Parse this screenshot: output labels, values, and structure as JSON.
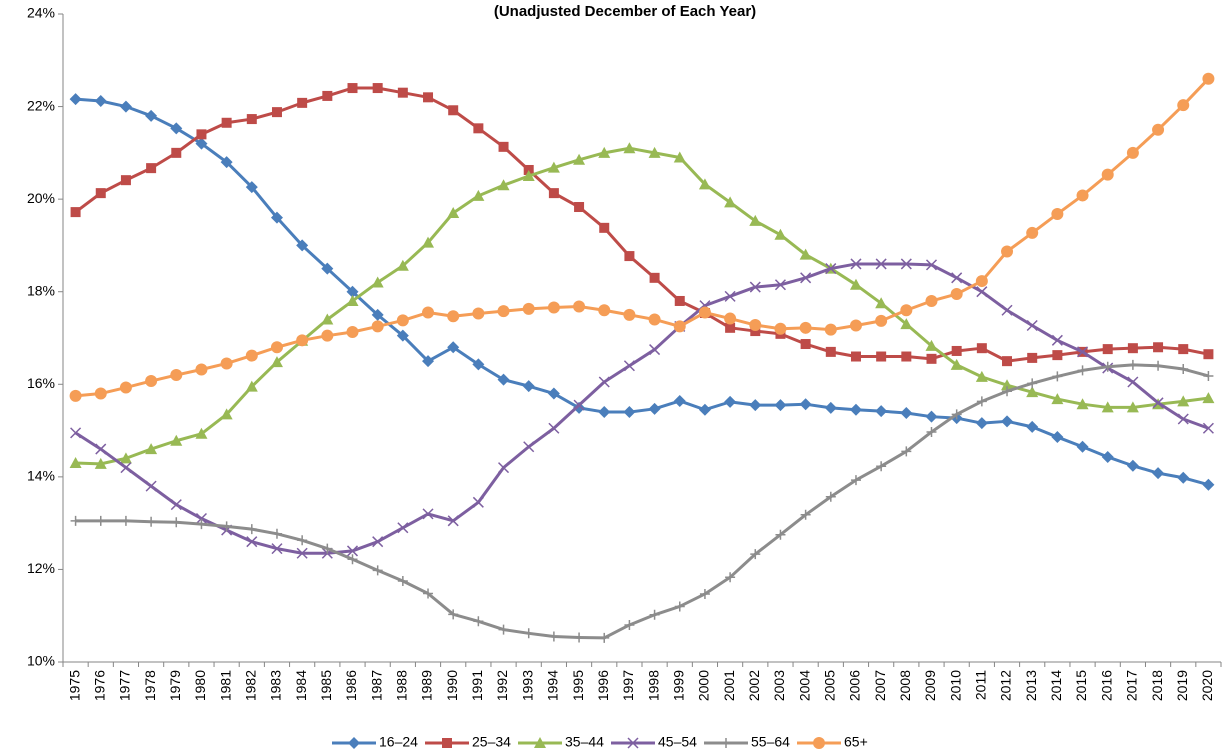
{
  "chart_data": {
    "type": "line",
    "subtitle": "(Unadjusted December of Each Year)",
    "categories": [
      "1975",
      "1976",
      "1977",
      "1978",
      "1979",
      "1980",
      "1981",
      "1982",
      "1983",
      "1984",
      "1985",
      "1986",
      "1987",
      "1988",
      "1989",
      "1990",
      "1991",
      "1992",
      "1993",
      "1994",
      "1995",
      "1996",
      "1997",
      "1998",
      "1999",
      "2000",
      "2001",
      "2002",
      "2003",
      "2004",
      "2005",
      "2006",
      "2007",
      "2008",
      "2009",
      "2010",
      "2011",
      "2012",
      "2013",
      "2014",
      "2015",
      "2016",
      "2017",
      "2018",
      "2019",
      "2020"
    ],
    "ylim": [
      10,
      24
    ],
    "yticks": [
      {
        "value": 10,
        "label": "10%"
      },
      {
        "value": 12,
        "label": "12%"
      },
      {
        "value": 14,
        "label": "14%"
      },
      {
        "value": 16,
        "label": "16%"
      },
      {
        "value": 18,
        "label": "18%"
      },
      {
        "value": 20,
        "label": "20%"
      },
      {
        "value": 22,
        "label": "22%"
      },
      {
        "value": 24,
        "label": "24%"
      }
    ],
    "grid": false,
    "legend": "bottom",
    "series": [
      {
        "name": "16–24",
        "color": "#4a7ebb",
        "marker": "diamond",
        "values": [
          22.16,
          22.12,
          22.0,
          21.8,
          21.53,
          21.2,
          20.8,
          20.26,
          19.6,
          19.0,
          18.5,
          18.0,
          17.5,
          17.05,
          16.5,
          16.8,
          16.43,
          16.1,
          15.96,
          15.8,
          15.49,
          15.4,
          15.4,
          15.47,
          15.64,
          15.45,
          15.62,
          15.55,
          15.55,
          15.57,
          15.49,
          15.45,
          15.42,
          15.38,
          15.3,
          15.27,
          15.16,
          15.2,
          15.08,
          14.86,
          14.65,
          14.43,
          14.24,
          14.08,
          13.98,
          13.83
        ]
      },
      {
        "name": "25–34",
        "color": "#be4b48",
        "marker": "square",
        "values": [
          19.72,
          20.13,
          20.41,
          20.67,
          21.0,
          21.4,
          21.65,
          21.73,
          21.88,
          22.08,
          22.23,
          22.4,
          22.4,
          22.3,
          22.2,
          21.92,
          21.53,
          21.13,
          20.63,
          20.13,
          19.83,
          19.38,
          18.77,
          18.3,
          17.8,
          17.54,
          17.22,
          17.15,
          17.09,
          16.87,
          16.7,
          16.6,
          16.6,
          16.6,
          16.55,
          16.72,
          16.78,
          16.5,
          16.57,
          16.63,
          16.7,
          16.76,
          16.78,
          16.8,
          16.76,
          16.65
        ]
      },
      {
        "name": "35–44",
        "color": "#98b954",
        "marker": "triangle",
        "values": [
          14.3,
          14.28,
          14.4,
          14.6,
          14.78,
          14.93,
          15.35,
          15.95,
          16.48,
          16.94,
          17.4,
          17.8,
          18.2,
          18.56,
          19.06,
          19.7,
          20.07,
          20.3,
          20.5,
          20.68,
          20.85,
          21.0,
          21.1,
          21.0,
          20.9,
          20.32,
          19.93,
          19.53,
          19.23,
          18.8,
          18.5,
          18.15,
          17.75,
          17.3,
          16.83,
          16.42,
          16.16,
          15.98,
          15.83,
          15.68,
          15.57,
          15.5,
          15.5,
          15.57,
          15.63,
          15.7
        ]
      },
      {
        "name": "45–54",
        "color": "#7d5fa0",
        "marker": "x",
        "values": [
          14.95,
          14.6,
          14.2,
          13.8,
          13.4,
          13.1,
          12.85,
          12.6,
          12.45,
          12.35,
          12.35,
          12.4,
          12.6,
          12.9,
          13.2,
          13.05,
          13.45,
          14.2,
          14.65,
          15.05,
          15.55,
          16.05,
          16.4,
          16.75,
          17.25,
          17.7,
          17.9,
          18.1,
          18.15,
          18.3,
          18.5,
          18.6,
          18.6,
          18.6,
          18.58,
          18.3,
          18.0,
          17.6,
          17.27,
          16.95,
          16.7,
          16.35,
          16.05,
          15.6,
          15.25,
          15.05
        ]
      },
      {
        "name": "55–64",
        "color": "#8c8c8c",
        "marker": "plus",
        "values": [
          13.05,
          13.05,
          13.05,
          13.03,
          13.02,
          12.98,
          12.93,
          12.87,
          12.77,
          12.63,
          12.45,
          12.22,
          11.98,
          11.75,
          11.48,
          11.03,
          10.88,
          10.7,
          10.62,
          10.55,
          10.53,
          10.52,
          10.8,
          11.02,
          11.2,
          11.47,
          11.83,
          12.33,
          12.75,
          13.18,
          13.57,
          13.93,
          14.23,
          14.55,
          14.97,
          15.35,
          15.63,
          15.85,
          16.02,
          16.17,
          16.3,
          16.38,
          16.42,
          16.4,
          16.33,
          16.18
        ]
      },
      {
        "name": "65+",
        "color": "#f59d56",
        "marker": "circle",
        "values": [
          15.75,
          15.8,
          15.93,
          16.07,
          16.2,
          16.32,
          16.45,
          16.62,
          16.8,
          16.95,
          17.05,
          17.13,
          17.25,
          17.38,
          17.55,
          17.47,
          17.53,
          17.58,
          17.63,
          17.66,
          17.68,
          17.6,
          17.5,
          17.4,
          17.25,
          17.55,
          17.42,
          17.28,
          17.2,
          17.22,
          17.18,
          17.27,
          17.37,
          17.6,
          17.8,
          17.95,
          18.23,
          18.87,
          19.27,
          19.68,
          20.08,
          20.53,
          21.0,
          21.5,
          22.03,
          22.6
        ]
      }
    ]
  }
}
